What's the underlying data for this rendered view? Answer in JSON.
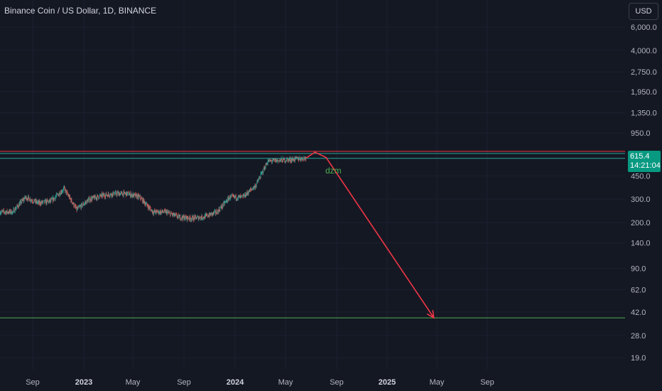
{
  "header": {
    "title": "Binance Coin / US Dollar, 1D, BINANCE",
    "currency_button": "USD"
  },
  "price_badge": {
    "price": "615.4",
    "countdown": "14:21:04",
    "color": "#089981"
  },
  "annotation": {
    "label": "dzm",
    "label_color": "#4caf50",
    "arrow_color": "#f23645"
  },
  "colors": {
    "background": "#141823",
    "up_candle": "#26a69a",
    "down_candle": "#ef5350",
    "support_line": "#4caf50",
    "resistance_line": "#f23645"
  },
  "chart_data": {
    "type": "candlestick",
    "symbol": "Binance Coin / US Dollar",
    "interval": "1D",
    "exchange": "BINANCE",
    "y_scale": "log",
    "y_ticks": [
      "6,000.0",
      "4,000.0",
      "2,750.0",
      "1,950.0",
      "1,350.0",
      "950.0",
      "450.0",
      "300.0",
      "200.0",
      "140.0",
      "90.0",
      "62.0",
      "42.0",
      "28.0",
      "19.0"
    ],
    "x_ticks": [
      {
        "label": "Sep",
        "year": false
      },
      {
        "label": "2023",
        "year": true
      },
      {
        "label": "May",
        "year": false
      },
      {
        "label": "Sep",
        "year": false
      },
      {
        "label": "2024",
        "year": true
      },
      {
        "label": "May",
        "year": false
      },
      {
        "label": "Sep",
        "year": false
      },
      {
        "label": "2025",
        "year": true
      },
      {
        "label": "May",
        "year": false
      },
      {
        "label": "Sep",
        "year": false
      }
    ],
    "approx_close_path": [
      {
        "date": "2022-07",
        "close": 240
      },
      {
        "date": "2022-08",
        "close": 310
      },
      {
        "date": "2022-09",
        "close": 280
      },
      {
        "date": "2022-10",
        "close": 290
      },
      {
        "date": "2022-11",
        "close": 360
      },
      {
        "date": "2022-12",
        "close": 250
      },
      {
        "date": "2023-01",
        "close": 300
      },
      {
        "date": "2023-02",
        "close": 320
      },
      {
        "date": "2023-03",
        "close": 330
      },
      {
        "date": "2023-04",
        "close": 330
      },
      {
        "date": "2023-05",
        "close": 310
      },
      {
        "date": "2023-06",
        "close": 240
      },
      {
        "date": "2023-07",
        "close": 240
      },
      {
        "date": "2023-08",
        "close": 220
      },
      {
        "date": "2023-09",
        "close": 215
      },
      {
        "date": "2023-10",
        "close": 220
      },
      {
        "date": "2023-11",
        "close": 240
      },
      {
        "date": "2023-12",
        "close": 310
      },
      {
        "date": "2024-01",
        "close": 310
      },
      {
        "date": "2024-02",
        "close": 380
      },
      {
        "date": "2024-03",
        "close": 580
      },
      {
        "date": "2024-04",
        "close": 590
      },
      {
        "date": "2024-05",
        "close": 600
      },
      {
        "date": "2024-06",
        "close": 615
      }
    ],
    "horizontal_lines": [
      {
        "price": 690,
        "color": "#f23645"
      },
      {
        "price": 665,
        "color": "#26a69a"
      },
      {
        "price": 610,
        "color": "#26a69a"
      },
      {
        "price": 38,
        "color": "#4caf50"
      }
    ],
    "projection_path": [
      {
        "date": "2024-06",
        "price": 615
      },
      {
        "date": "2024-06",
        "price": 680
      },
      {
        "date": "2024-07",
        "price": 620
      },
      {
        "date": "2025-04",
        "price": 38
      }
    ]
  }
}
